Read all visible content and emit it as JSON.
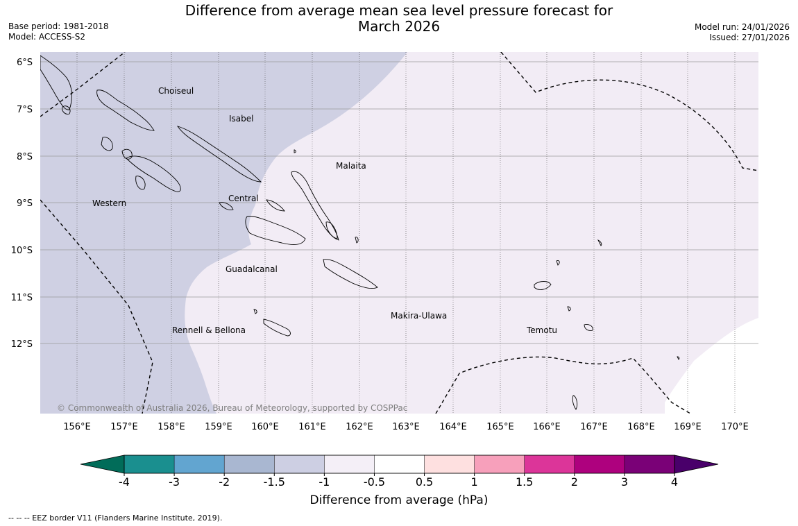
{
  "header": {
    "title_line1": "Difference from average mean sea level pressure forecast for",
    "title_line2": "March 2026",
    "base_period": "Base period: 1981-2018",
    "model": "Model: ACCESS-S2",
    "model_run": "Model run: 24/01/2026",
    "issued": "Issued: 27/01/2026"
  },
  "map": {
    "latitude_labels": [
      "6°S",
      "7°S",
      "8°S",
      "9°S",
      "10°S",
      "11°S",
      "12°S"
    ],
    "longitude_labels": [
      "156°E",
      "157°E",
      "158°E",
      "159°E",
      "160°E",
      "161°E",
      "162°E",
      "163°E",
      "164°E",
      "165°E",
      "166°E",
      "167°E",
      "168°E",
      "169°E",
      "170°E"
    ],
    "regions": [
      "Choiseul",
      "Isabel",
      "Malaita",
      "Western",
      "Central",
      "Guadalcanal",
      "Makira-Ulawa",
      "Rennell & Bellona",
      "Temotu"
    ],
    "copyright": "© Commonwealth of Australia 2026, Bureau of Meteorology, supported by COSPPac",
    "colors": {
      "minus_1_5_to_1": "#cfd0e3",
      "minus_1_to_0_5": "#f2ecf5",
      "ocean_neutral": "#ffffff"
    }
  },
  "colorbar": {
    "ticks": [
      "-4",
      "-3",
      "-2",
      "-1.5",
      "-1",
      "-0.5",
      "0.5",
      "1",
      "1.5",
      "2",
      "3",
      "4"
    ],
    "colors": [
      "#1a8f8f",
      "#62a5d0",
      "#a9b7d1",
      "#cdcfe3",
      "#f4eff7",
      "#ffffff",
      "#fee0e0",
      "#f7a0bb",
      "#dc3599",
      "#ae017e",
      "#7a0177"
    ],
    "under_color": "#016c59",
    "over_color": "#49006a",
    "label": "Difference from average (hPa)"
  },
  "footnote": "--  --  -- EEZ border V11 (Flanders Marine Institute, 2019)."
}
